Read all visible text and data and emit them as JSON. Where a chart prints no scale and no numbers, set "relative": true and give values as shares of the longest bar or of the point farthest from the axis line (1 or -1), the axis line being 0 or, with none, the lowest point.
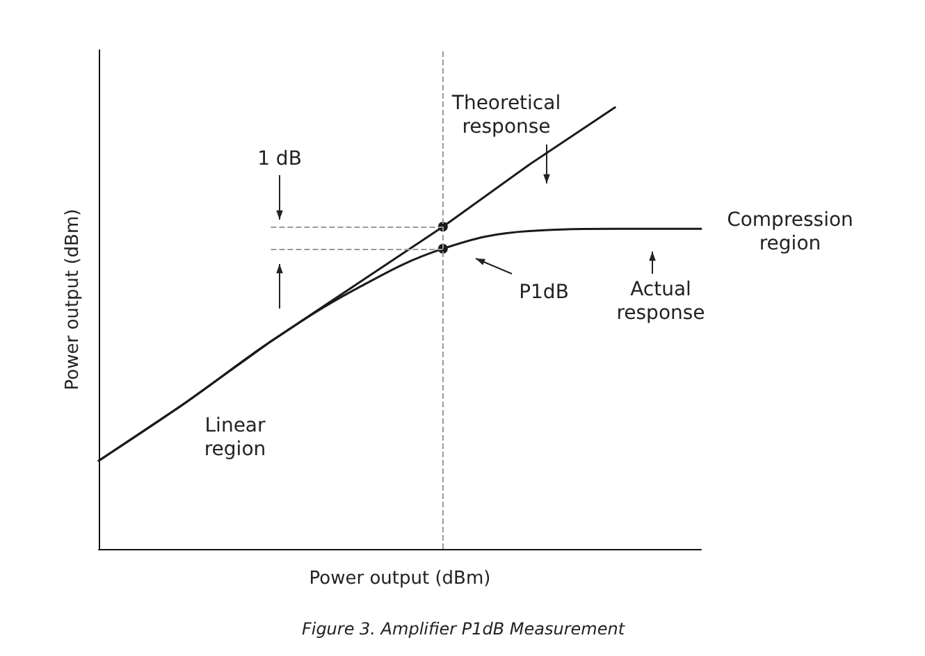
{
  "chart_data": {
    "type": "line",
    "relative": true,
    "xlabel": "Power output (dBm)",
    "ylabel": "Power output (dBm)",
    "categories": [
      null,
      null,
      null,
      null,
      null,
      null,
      null,
      null
    ],
    "series": [
      {
        "color": "#1a1a1a",
        "values": [
          0.2,
          0.33,
          0.47,
          0.6,
          0.73,
          0.87,
          1.0,
          null
        ]
      },
      {
        "color": "#1a1a1a",
        "values": [
          0.2,
          0.33,
          0.47,
          0.59,
          0.68,
          0.72,
          0.725,
          0.725
        ]
      }
    ],
    "ref_lines": [
      {
        "axis": "y",
        "value": 0.73,
        "color": "#999999",
        "line_style": "dashed"
      },
      {
        "axis": "y",
        "value": 0.68,
        "color": "#999999",
        "line_style": "dashed"
      }
    ],
    "annotations": [
      "Theoretical\nresponse",
      "1 dB",
      "Compression\nregion",
      "P1dB",
      "Actual\nresponse",
      "Linear\nregion",
      "Figure 3. Amplifier P1dB Measurement"
    ],
    "marker": "none",
    "line_style": "solid",
    "grid": false
  }
}
